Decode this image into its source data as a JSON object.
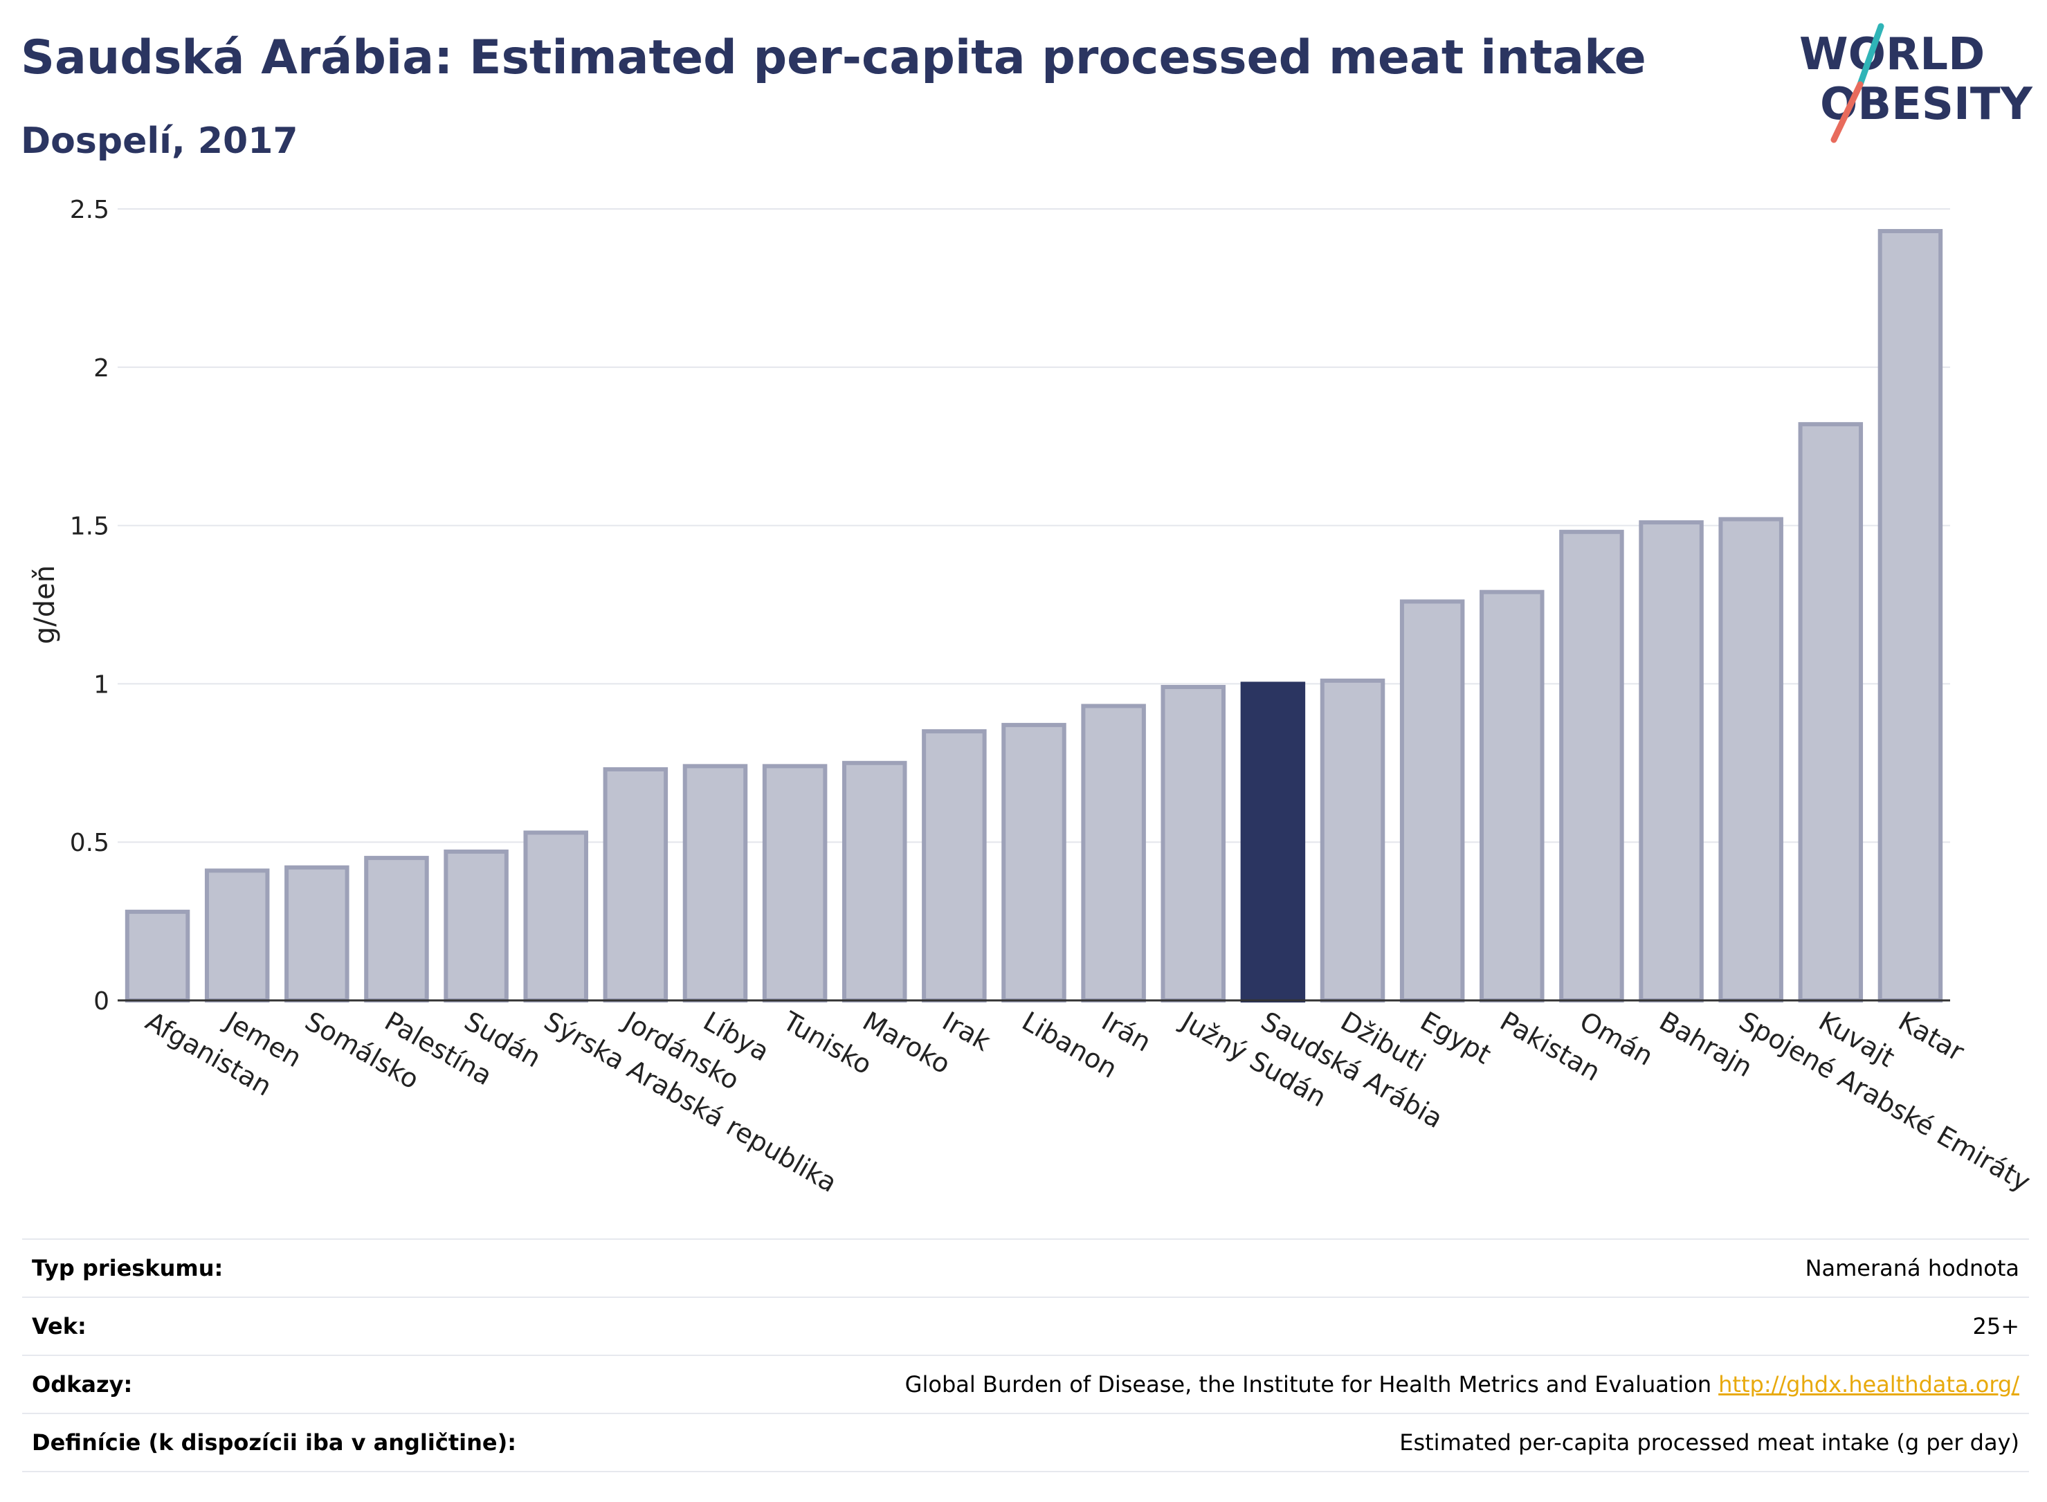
{
  "title": "Saudská Arábia: Estimated per-capita processed meat intake",
  "subtitle": "Dospelí, 2017",
  "logo": {
    "line1": "WORLD",
    "line2": "OBESITY"
  },
  "colors": {
    "highlight": "#2b3561",
    "bar": "#bfc2d0",
    "bar_stroke": "#9da1b8",
    "title": "#2b3561",
    "link": "#e8a90c"
  },
  "chart_data": {
    "type": "bar",
    "title": "Saudská Arábia: Estimated per-capita processed meat intake",
    "subtitle": "Dospelí, 2017",
    "xlabel": "",
    "ylabel": "g/deň",
    "ylim": [
      0,
      2.5
    ],
    "yticks": [
      0,
      0.5,
      1,
      1.5,
      2,
      2.5
    ],
    "ytick_labels": [
      "0",
      "0.5",
      "1",
      "1.5",
      "2",
      "2.5"
    ],
    "grid": true,
    "highlight": "Saudská Arábia",
    "categories": [
      "Afganistan",
      "Jemen",
      "Somálsko",
      "Palestína",
      "Sudán",
      "Sýrska Arabská republika",
      "Jordánsko",
      "Líbya",
      "Tunisko",
      "Maroko",
      "Irak",
      "Libanon",
      "Irán",
      "Južný Sudán",
      "Saudská Arábia",
      "Džibuti",
      "Egypt",
      "Pakistan",
      "Omán",
      "Bahrajn",
      "Spojené Arabské Emiráty",
      "Kuvajt",
      "Katar"
    ],
    "values": [
      0.28,
      0.41,
      0.42,
      0.45,
      0.47,
      0.53,
      0.73,
      0.74,
      0.74,
      0.75,
      0.85,
      0.87,
      0.93,
      0.99,
      1.0,
      1.01,
      1.26,
      1.29,
      1.48,
      1.51,
      1.52,
      1.82,
      2.43
    ]
  },
  "info": [
    {
      "label": "Typ prieskumu:",
      "value": "Nameraná hodnota"
    },
    {
      "label": "Vek:",
      "value": "25+"
    },
    {
      "label": "Odkazy:",
      "value": "Global Burden of Disease, the Institute for Health Metrics and Evaluation",
      "link": "http://ghdx.healthdata.org/"
    },
    {
      "label": "Definície (k dispozícii iba v angličtine):",
      "value": "Estimated per-capita processed meat intake (g per day)"
    }
  ]
}
